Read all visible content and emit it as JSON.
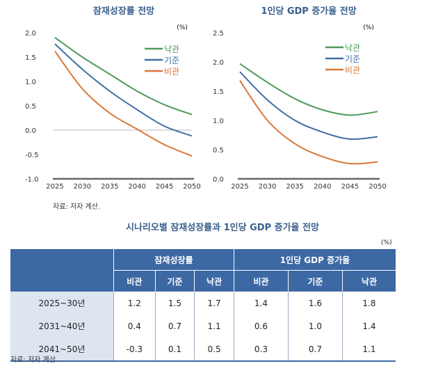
{
  "chart_data": [
    {
      "type": "line",
      "title": "잠재성장률 전망",
      "unit": "(%)",
      "x": [
        2025,
        2030,
        2035,
        2040,
        2045,
        2050
      ],
      "ylim": [
        -1.0,
        2.0
      ],
      "yticks": [
        "2.0",
        "1.5",
        "1.0",
        "0.5",
        "0.0",
        "-0.5",
        "-1.0"
      ],
      "xticks": [
        "2025",
        "2030",
        "2035",
        "2040",
        "2045",
        "2050"
      ],
      "legend": "top-right",
      "series": [
        {
          "name": "낙관",
          "color": "#4e9a5a",
          "values": [
            1.9,
            1.5,
            1.15,
            0.8,
            0.52,
            0.32
          ]
        },
        {
          "name": "기준",
          "color": "#3f6ea5",
          "values": [
            1.77,
            1.25,
            0.8,
            0.42,
            0.08,
            -0.12
          ]
        },
        {
          "name": "비관",
          "color": "#d9773a",
          "values": [
            1.62,
            0.85,
            0.35,
            0.02,
            -0.3,
            -0.53
          ]
        }
      ]
    },
    {
      "type": "line",
      "title": "1인당 GDP 증가율 전망",
      "unit": "(%)",
      "x": [
        2025,
        2030,
        2035,
        2040,
        2045,
        2050
      ],
      "ylim": [
        0.0,
        2.5
      ],
      "yticks": [
        "2.5",
        "2.0",
        "1.5",
        "1.0",
        "0.5",
        "0.0"
      ],
      "xticks": [
        "2025",
        "2030",
        "2035",
        "2040",
        "2045",
        "2050"
      ],
      "legend": "top-right",
      "series": [
        {
          "name": "낙관",
          "color": "#4e9a5a",
          "values": [
            1.97,
            1.65,
            1.37,
            1.18,
            1.09,
            1.15
          ]
        },
        {
          "name": "기준",
          "color": "#3f6ea5",
          "values": [
            1.83,
            1.35,
            1.0,
            0.8,
            0.68,
            0.72
          ]
        },
        {
          "name": "비관",
          "color": "#d9773a",
          "values": [
            1.68,
            1.0,
            0.6,
            0.38,
            0.26,
            0.29
          ]
        }
      ]
    }
  ],
  "chart_source": "자료: 저자 계산.",
  "table": {
    "title": "시나리오별 잠재성장률과 1인당 GDP 증가율 전망",
    "unit": "(%)",
    "groups": [
      "잠재성장률",
      "1인당 GDP 증가율"
    ],
    "subheaders": [
      "비관",
      "기준",
      "낙관",
      "비관",
      "기준",
      "낙관"
    ],
    "rows": [
      {
        "label": "2025~30년",
        "values": [
          "1.2",
          "1.5",
          "1.7",
          "1.4",
          "1.6",
          "1.8"
        ]
      },
      {
        "label": "2031~40년",
        "values": [
          "0.4",
          "0.7",
          "1.1",
          "0.6",
          "1.0",
          "1.4"
        ]
      },
      {
        "label": "2041~50년",
        "values": [
          "-0.3",
          "0.1",
          "0.5",
          "0.3",
          "0.7",
          "1.1"
        ]
      }
    ],
    "source": "자료: 저자 계산."
  }
}
